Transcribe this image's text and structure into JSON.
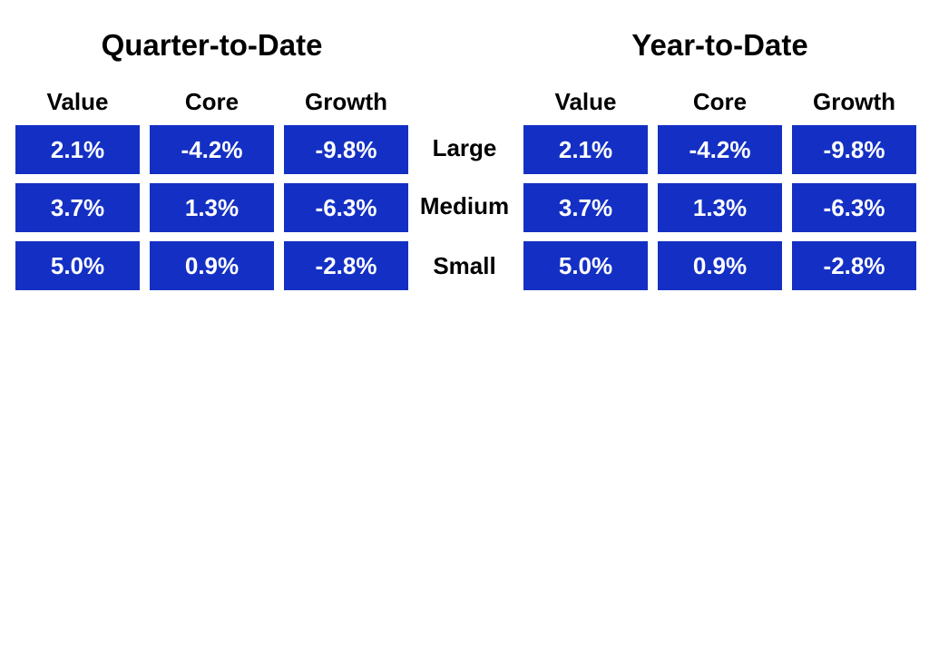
{
  "chart_data": {
    "type": "table",
    "panels": [
      {
        "title": "Quarter-to-Date",
        "columns": [
          "Value",
          "Core",
          "Growth"
        ],
        "rows": [
          {
            "label": "Large",
            "values": [
              "2.1%",
              "-4.2%",
              "-9.8%"
            ]
          },
          {
            "label": "Medium",
            "values": [
              "3.7%",
              "1.3%",
              "-6.3%"
            ]
          },
          {
            "label": "Small",
            "values": [
              "5.0%",
              "0.9%",
              "-2.8%"
            ]
          }
        ]
      },
      {
        "title": "Year-to-Date",
        "columns": [
          "Value",
          "Core",
          "Growth"
        ],
        "rows": [
          {
            "label": "Large",
            "values": [
              "2.1%",
              "-4.2%",
              "-9.8%"
            ]
          },
          {
            "label": "Medium",
            "values": [
              "3.7%",
              "1.3%",
              "-6.3%"
            ]
          },
          {
            "label": "Small",
            "values": [
              "5.0%",
              "0.9%",
              "-2.8%"
            ]
          }
        ]
      }
    ],
    "row_labels": [
      "Large",
      "Medium",
      "Small"
    ],
    "colors": {
      "cell_fill": "#1430c4",
      "cell_text": "#ffffff",
      "label_text": "#000000"
    }
  }
}
